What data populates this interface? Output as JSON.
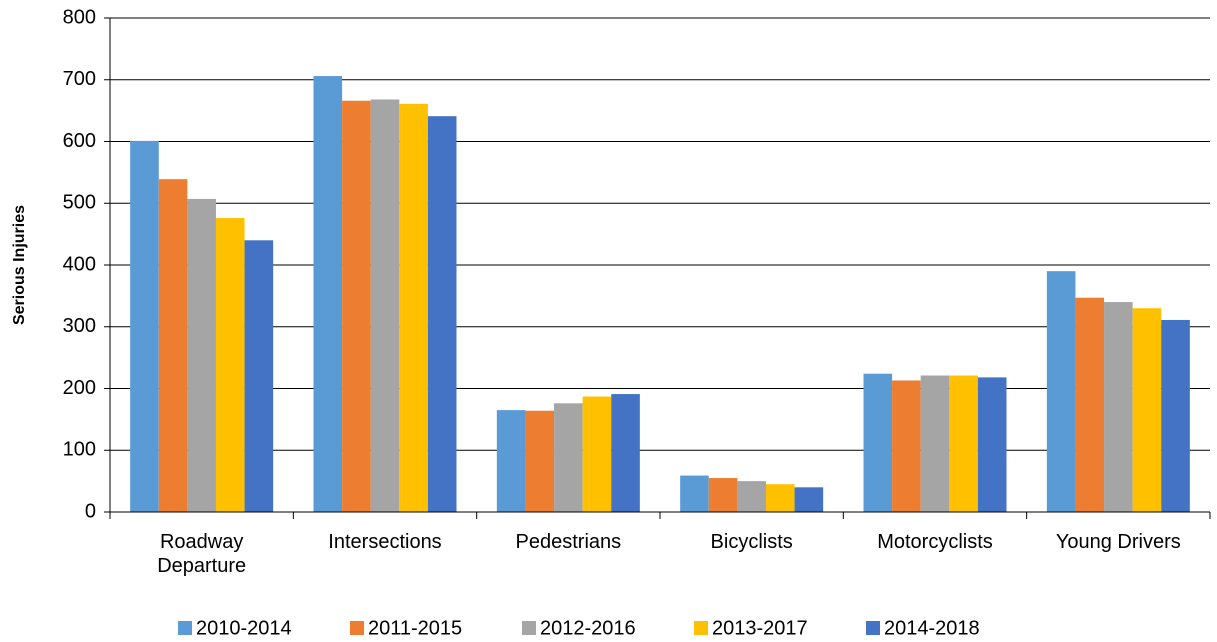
{
  "chart_data": {
    "type": "bar",
    "y_label": "Serious Injuries",
    "categories": [
      "Roadway Departure",
      "Intersections",
      "Pedestrians",
      "Bicyclists",
      "Motorcyclists",
      "Young Drivers"
    ],
    "series": [
      {
        "name": "2010-2014",
        "color": "#5b9bd5",
        "values": [
          601,
          706,
          165,
          59,
          224,
          390
        ]
      },
      {
        "name": "2011-2015",
        "color": "#ed7d31",
        "values": [
          539,
          666,
          164,
          55,
          213,
          347
        ]
      },
      {
        "name": "2012-2016",
        "color": "#a5a5a5",
        "values": [
          507,
          668,
          176,
          50,
          221,
          340
        ]
      },
      {
        "name": "2013-2017",
        "color": "#ffc000",
        "values": [
          476,
          661,
          187,
          45,
          221,
          330
        ]
      },
      {
        "name": "2014-2018",
        "color": "#4472c4",
        "values": [
          440,
          641,
          191,
          40,
          218,
          311
        ]
      }
    ],
    "ylim": [
      0,
      800
    ],
    "yticks": [
      0,
      100,
      200,
      300,
      400,
      500,
      600,
      700,
      800
    ],
    "grid": true,
    "legend": "bottom"
  }
}
